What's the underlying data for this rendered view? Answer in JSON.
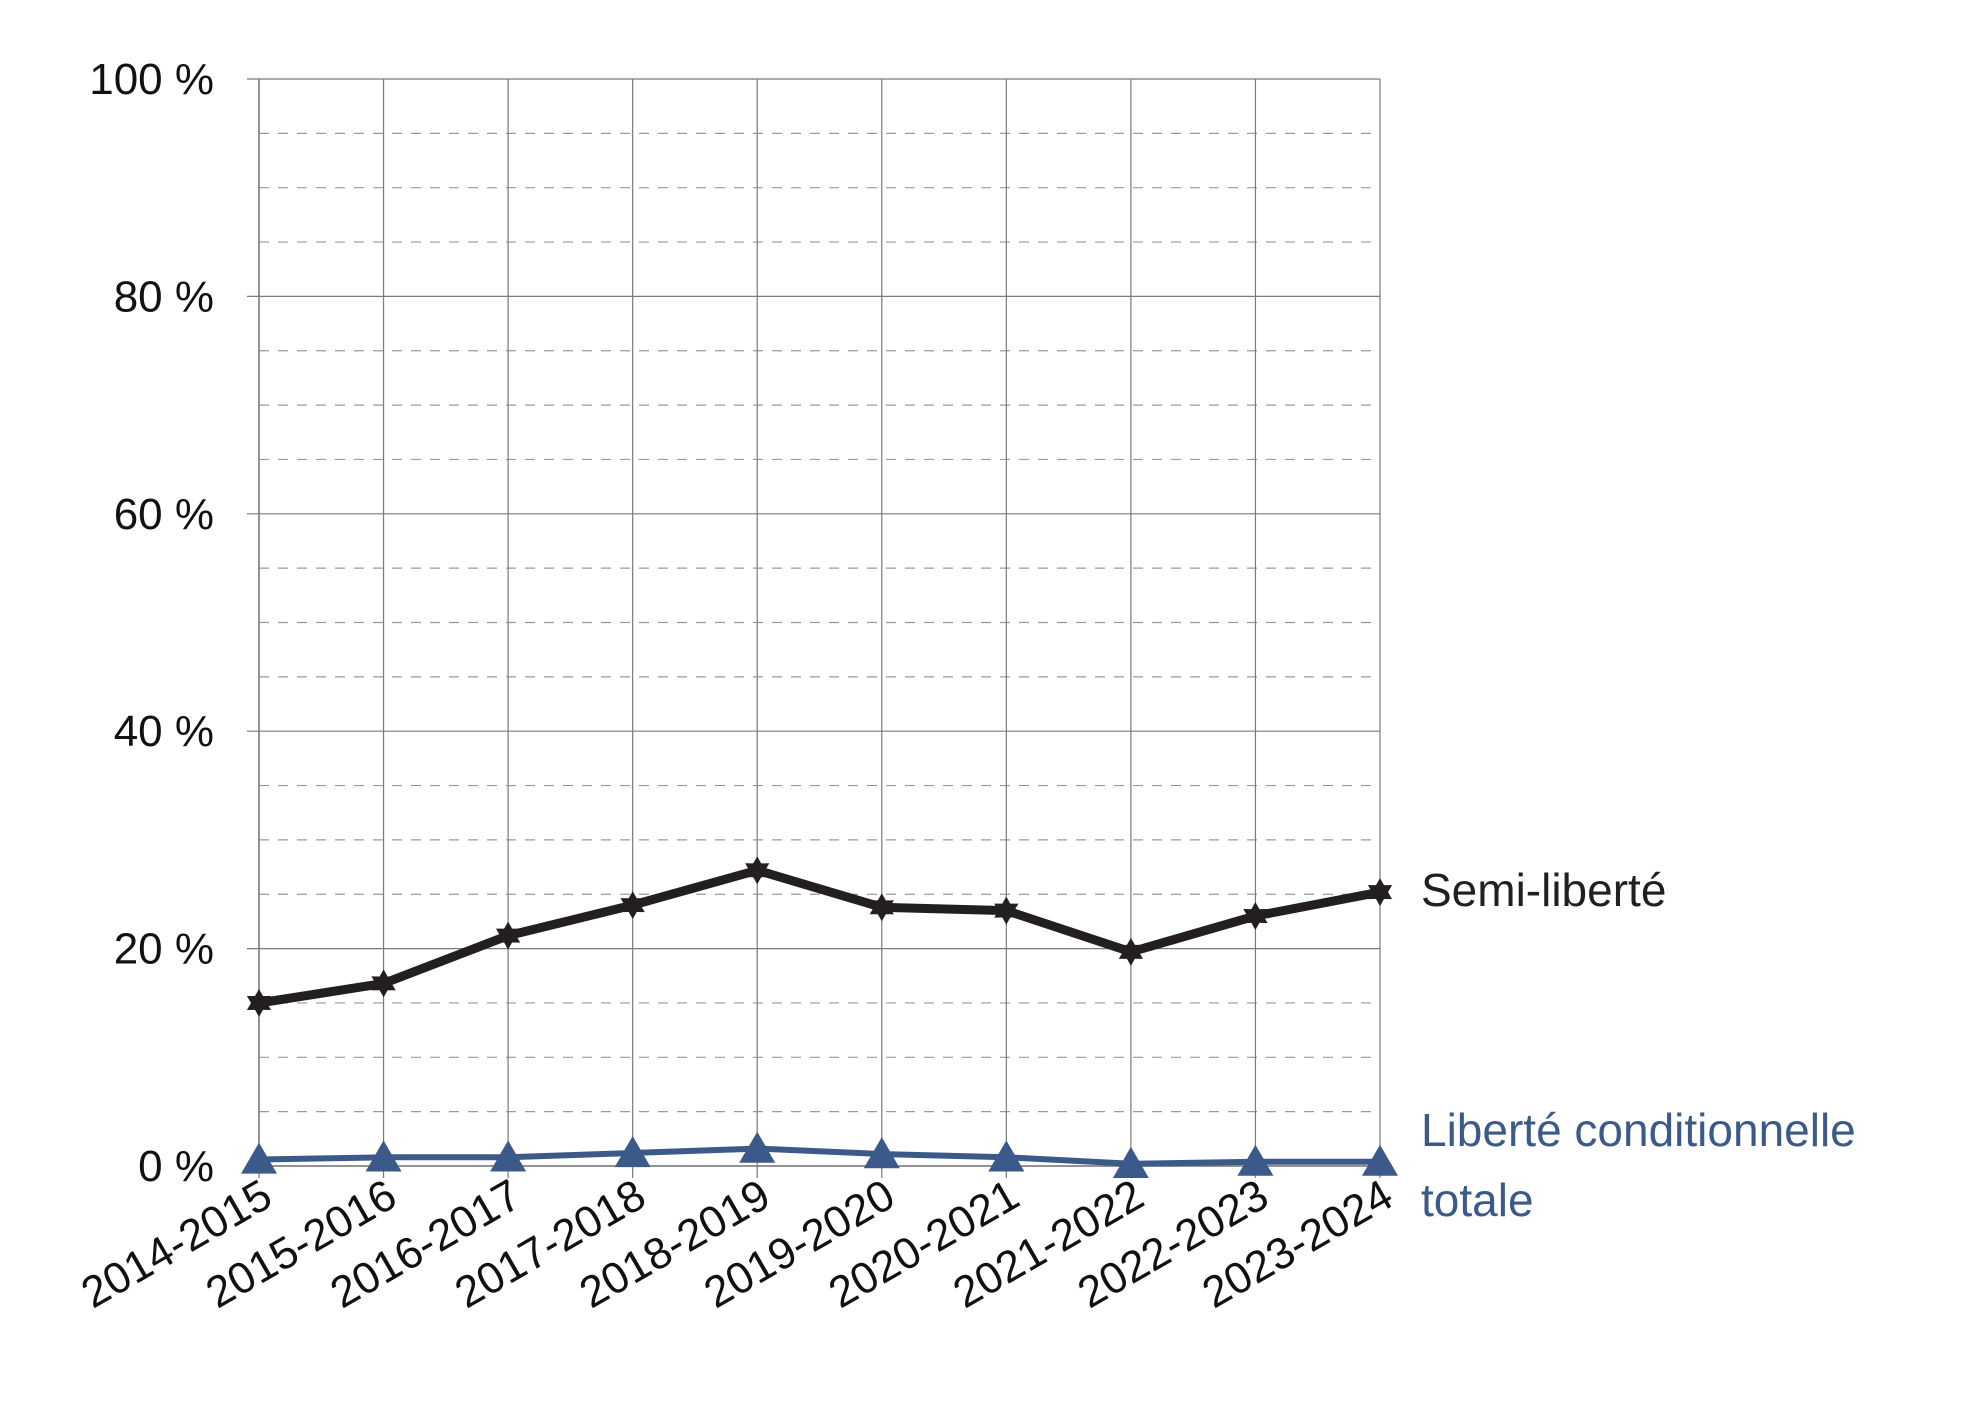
{
  "chart_data": {
    "type": "line",
    "categories": [
      "2014-2015",
      "2015-2016",
      "2016-2017",
      "2017-2018",
      "2018-2019",
      "2019-2020",
      "2020-2021",
      "2021-2022",
      "2022-2023",
      "2023-2024"
    ],
    "series": [
      {
        "name": "Semi-liberté",
        "values": [
          15.0,
          16.8,
          21.2,
          24.0,
          27.2,
          23.8,
          23.5,
          19.7,
          23.0,
          25.2
        ],
        "color": "#231f20",
        "marker": "star-icon"
      },
      {
        "name": "Liberté conditionnelle totale",
        "label_lines": [
          "Liberté conditionnelle",
          "totale"
        ],
        "values": [
          0.6,
          0.8,
          0.8,
          1.2,
          1.6,
          1.1,
          0.8,
          0.2,
          0.4,
          0.4
        ],
        "color": "#3b5a8a",
        "marker": "triangle-icon"
      }
    ],
    "y_ticks": [
      {
        "value": 0,
        "label": "0 %"
      },
      {
        "value": 20,
        "label": "20 %"
      },
      {
        "value": 40,
        "label": "40 %"
      },
      {
        "value": 60,
        "label": "60 %"
      },
      {
        "value": 80,
        "label": "80 %"
      },
      {
        "value": 100,
        "label": "100 %"
      }
    ],
    "ylim": [
      0,
      100
    ],
    "minor_grid_step": 5,
    "grid": true,
    "legend": "inline-right"
  }
}
